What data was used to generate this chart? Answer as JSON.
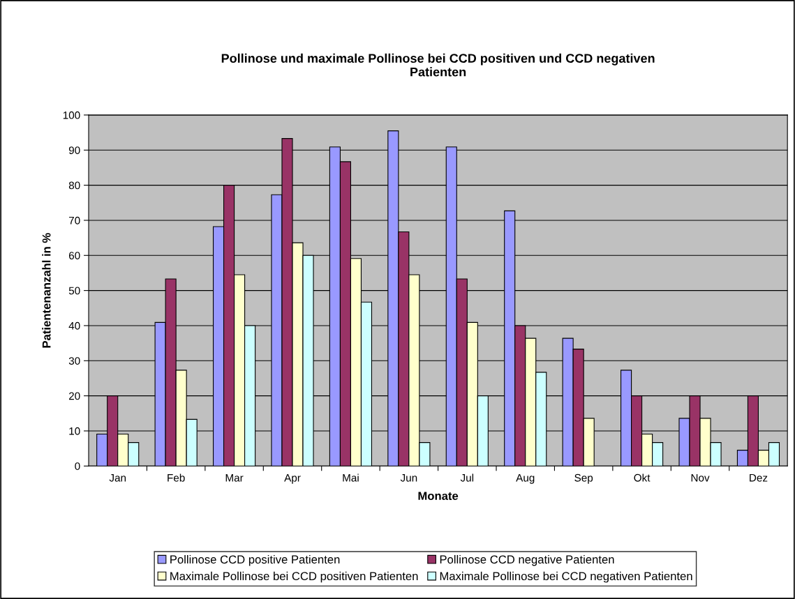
{
  "chart_data": {
    "type": "bar",
    "title": "Pollinose und maximale Pollinose bei CCD positiven und CCD negativen\nPatienten",
    "xlabel": "Monate",
    "ylabel": "Patientenanzahl in %",
    "categories": [
      "Jan",
      "Feb",
      "Mar",
      "Apr",
      "Mai",
      "Jun",
      "Jul",
      "Aug",
      "Sep",
      "Okt",
      "Nov",
      "Dez"
    ],
    "series": [
      {
        "name": "Pollinose CCD positive Patienten",
        "color": "#9999ff",
        "values": [
          9.1,
          40.9,
          68.2,
          77.3,
          90.9,
          95.5,
          90.9,
          72.7,
          36.4,
          27.3,
          13.6,
          4.5
        ]
      },
      {
        "name": "Pollinose CCD negative Patienten",
        "color": "#993366",
        "values": [
          20,
          53.3,
          80,
          93.3,
          86.7,
          66.7,
          53.3,
          40,
          33.3,
          20,
          20,
          20
        ]
      },
      {
        "name": "Maximale Pollinose bei CCD positiven Patienten",
        "color": "#ffffcc",
        "values": [
          9.1,
          27.3,
          54.5,
          63.6,
          59.1,
          54.5,
          40.9,
          36.4,
          13.6,
          9.1,
          13.6,
          4.5
        ]
      },
      {
        "name": "Maximale Pollinose bei CCD negativen Patienten",
        "color": "#ccffff",
        "values": [
          6.7,
          13.3,
          40,
          60,
          46.7,
          6.7,
          20,
          26.7,
          null,
          6.7,
          6.7,
          6.7
        ]
      }
    ],
    "ylim": [
      0,
      100
    ],
    "yticks": [
      0,
      10,
      20,
      30,
      40,
      50,
      60,
      70,
      80,
      90,
      100
    ],
    "grid": "y",
    "legend": "bottom"
  }
}
